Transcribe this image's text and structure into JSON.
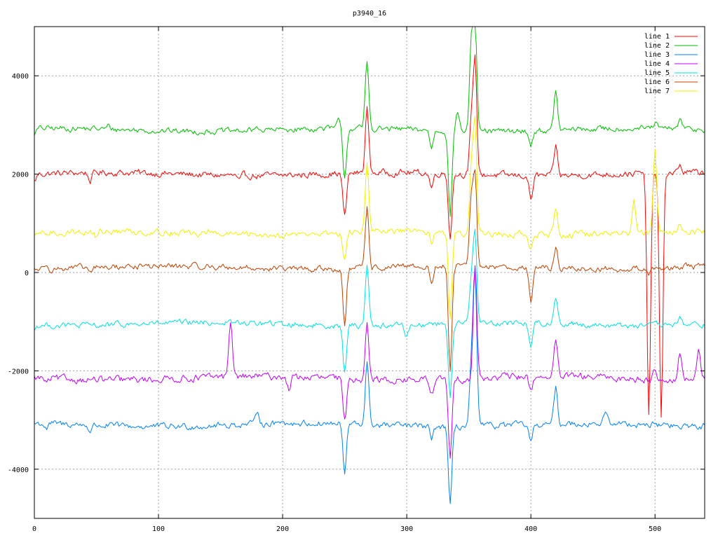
{
  "chart_data": {
    "type": "line",
    "title": "p3940_16",
    "xlabel": "",
    "ylabel": "",
    "xlim": [
      0,
      540
    ],
    "ylim": [
      -5000,
      5000
    ],
    "x_ticks": [
      0,
      100,
      200,
      300,
      400,
      500
    ],
    "x_tick_labels": [
      "0",
      "100",
      "200",
      "300",
      "400",
      "500"
    ],
    "y_ticks": [
      -4000,
      -2000,
      0,
      2000,
      4000
    ],
    "y_tick_labels": [
      "-4000",
      "-2000",
      "0",
      "2000",
      "4000"
    ],
    "grid": true,
    "legend_position": "top-right",
    "series": [
      {
        "name": "line 1",
        "color": "#ff0000",
        "baseline": 2000,
        "scale": 1.0,
        "noise": 55,
        "spikes": [
          [
            0,
            -150
          ],
          [
            45,
            -170
          ],
          [
            165,
            -130
          ],
          [
            250,
            -900
          ],
          [
            268,
            1300
          ],
          [
            320,
            -300
          ],
          [
            335,
            -1300
          ],
          [
            352,
            1000
          ],
          [
            355,
            2300
          ],
          [
            400,
            -500
          ],
          [
            420,
            600
          ],
          [
            495,
            -4900
          ],
          [
            505,
            -5000
          ],
          [
            520,
            150
          ]
        ]
      },
      {
        "name": "line 2",
        "color": "#00c000",
        "baseline": 2900,
        "scale": 1.0,
        "noise": 50,
        "spikes": [
          [
            0,
            -100
          ],
          [
            60,
            60
          ],
          [
            180,
            80
          ],
          [
            245,
            150
          ],
          [
            250,
            -1000
          ],
          [
            268,
            1350
          ],
          [
            320,
            -350
          ],
          [
            335,
            -1700
          ],
          [
            341,
            400
          ],
          [
            352,
            1800
          ],
          [
            355,
            2100
          ],
          [
            400,
            -300
          ],
          [
            420,
            800
          ],
          [
            500,
            100
          ],
          [
            520,
            200
          ]
        ]
      },
      {
        "name": "line 3",
        "color": "#0080ff",
        "baseline": -3100,
        "scale": 1.0,
        "noise": 55,
        "spikes": [
          [
            10,
            -100
          ],
          [
            45,
            -120
          ],
          [
            180,
            280
          ],
          [
            200,
            100
          ],
          [
            250,
            -1000
          ],
          [
            268,
            1250
          ],
          [
            320,
            -250
          ],
          [
            335,
            -1650
          ],
          [
            352,
            1200
          ],
          [
            355,
            3100
          ],
          [
            400,
            -400
          ],
          [
            420,
            700
          ],
          [
            460,
            200
          ],
          [
            520,
            -100
          ]
        ]
      },
      {
        "name": "line 4",
        "color": "#c000ff",
        "baseline": -2150,
        "scale": 1.0,
        "noise": 60,
        "spikes": [
          [
            10,
            -100
          ],
          [
            158,
            1150
          ],
          [
            205,
            -250
          ],
          [
            250,
            -900
          ],
          [
            268,
            1250
          ],
          [
            320,
            -300
          ],
          [
            335,
            -1650
          ],
          [
            355,
            2300
          ],
          [
            400,
            -300
          ],
          [
            420,
            700
          ],
          [
            500,
            200
          ],
          [
            520,
            500
          ],
          [
            535,
            600
          ]
        ]
      },
      {
        "name": "line 5",
        "color": "#00e0e0",
        "baseline": -1050,
        "scale": 1.0,
        "noise": 50,
        "spikes": [
          [
            0,
            -80
          ],
          [
            250,
            -950
          ],
          [
            268,
            1250
          ],
          [
            300,
            -250
          ],
          [
            335,
            -1500
          ],
          [
            352,
            900
          ],
          [
            355,
            1800
          ],
          [
            400,
            -500
          ],
          [
            420,
            550
          ],
          [
            520,
            200
          ]
        ]
      },
      {
        "name": "line 6",
        "color": "#c04000",
        "baseline": 100,
        "scale": 1.0,
        "noise": 50,
        "spikes": [
          [
            10,
            120
          ],
          [
            45,
            -100
          ],
          [
            250,
            -1150
          ],
          [
            268,
            1200
          ],
          [
            320,
            -350
          ],
          [
            335,
            -2100
          ],
          [
            352,
            1300
          ],
          [
            355,
            1800
          ],
          [
            400,
            -700
          ],
          [
            420,
            450
          ],
          [
            495,
            -100
          ],
          [
            520,
            -50
          ]
        ]
      },
      {
        "name": "line 7",
        "color": "#f0f000",
        "baseline": 800,
        "scale": 1.0,
        "noise": 55,
        "spikes": [
          [
            0,
            -100
          ],
          [
            50,
            -120
          ],
          [
            140,
            50
          ],
          [
            250,
            -600
          ],
          [
            268,
            1450
          ],
          [
            320,
            -250
          ],
          [
            335,
            -1700
          ],
          [
            352,
            1300
          ],
          [
            355,
            2200
          ],
          [
            400,
            -350
          ],
          [
            420,
            550
          ],
          [
            483,
            700
          ],
          [
            500,
            1700
          ],
          [
            520,
            150
          ]
        ]
      }
    ]
  }
}
